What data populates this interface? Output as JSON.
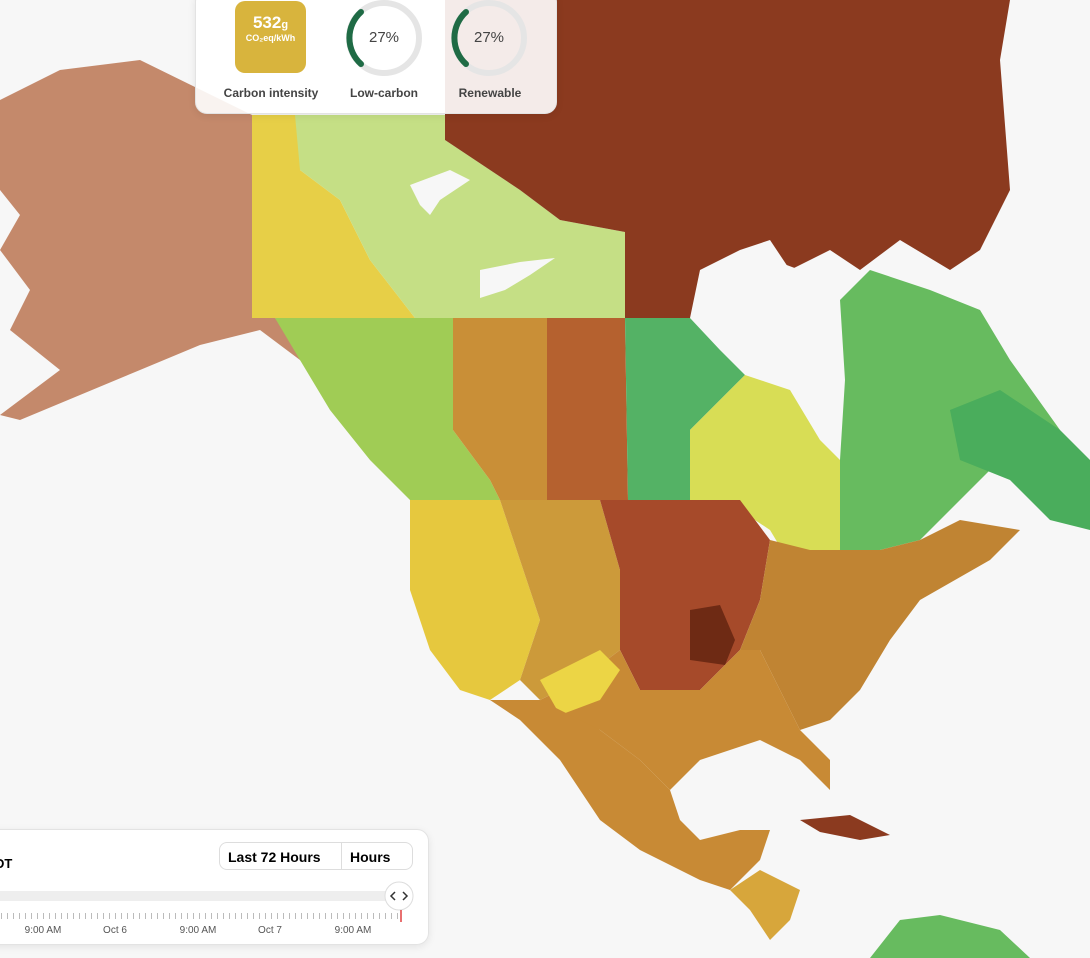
{
  "header": {
    "intensity_value": "532",
    "intensity_unit": "g",
    "intensity_subunit": "CO₂eq/kWh",
    "intensity_label": "Carbon intensity",
    "gauges": [
      {
        "value_text": "27%",
        "label": "Low-carbon"
      },
      {
        "value_text": "27%",
        "label": "Renewable"
      }
    ]
  },
  "timeline": {
    "timezone": "DT",
    "range_select": "Last 72 Hours",
    "resolution_select": "Hours",
    "tick_labels": [
      "9:00 AM",
      "Oct 6",
      "9:00 AM",
      "Oct 7",
      "9:00 AM"
    ]
  }
}
